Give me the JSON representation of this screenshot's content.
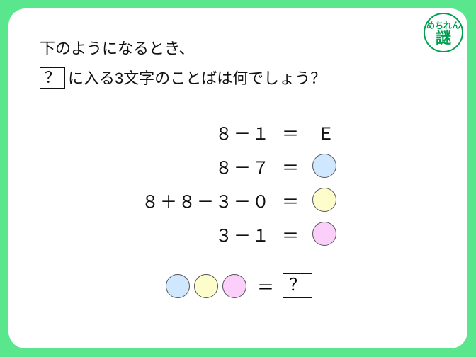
{
  "background_color": "#5ae68c",
  "card": {
    "bg": "#ffffff",
    "radius": 24
  },
  "logo": {
    "line1": "めちれん",
    "line2": "謎",
    "color": "#00a050"
  },
  "question": {
    "line1": "下のようになるとき、",
    "box": "？",
    "line2_after": "に入る3文字のことばは何でしょう？",
    "fontsize": 22,
    "color": "#111111"
  },
  "equations": [
    {
      "lhs": "８－１",
      "rhs_type": "text",
      "rhs_text": "Ｅ"
    },
    {
      "lhs": "８－７",
      "rhs_type": "circle",
      "fill": "#cfe8ff"
    },
    {
      "lhs": "８＋８－３－０",
      "rhs_type": "circle",
      "fill": "#fdfccb"
    },
    {
      "lhs": "３－１",
      "rhs_type": "circle",
      "fill": "#fccffb"
    }
  ],
  "answer": {
    "circles": [
      "#cfe8ff",
      "#fdfccb",
      "#fccffb"
    ],
    "box": "？"
  },
  "style": {
    "eq_fontsize": 24,
    "circle_diameter": 34,
    "circle_border": "#555555"
  }
}
